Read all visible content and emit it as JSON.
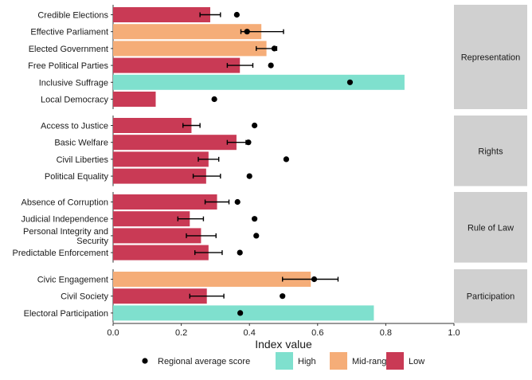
{
  "chart_data": {
    "type": "bar",
    "orientation": "horizontal",
    "xlabel": "Index value",
    "xlim": [
      0,
      1
    ],
    "xticks": [
      0.0,
      0.2,
      0.4,
      0.6,
      0.8,
      1.0
    ],
    "xtick_labels": [
      "0.0",
      "0.2",
      "0.4",
      "0.6",
      "0.8",
      "1.0"
    ],
    "grid": false,
    "legend_position": "bottom",
    "legend": [
      {
        "label": "Regional average score",
        "kind": "point",
        "color": "#000000"
      },
      {
        "label": "High",
        "kind": "fill",
        "color": "#7fe0ce"
      },
      {
        "label": "Mid-range",
        "kind": "fill",
        "color": "#f5ad78"
      },
      {
        "label": "Low",
        "kind": "fill",
        "color": "#c93a55"
      }
    ],
    "colors": {
      "High": "#7fe0ce",
      "Mid-range": "#f5ad78",
      "Low": "#c93a55",
      "facet_strip": "#d0d0d0"
    },
    "facets": [
      {
        "name": "Representation",
        "items": [
          {
            "label": [
              "Credible Elections"
            ],
            "value": 0.285,
            "level": "Low",
            "err": [
              0.255,
              0.315
            ],
            "regional": 0.363
          },
          {
            "label": [
              "Effective Parliament"
            ],
            "value": 0.435,
            "level": "Mid-range",
            "err": [
              0.375,
              0.5
            ],
            "regional": 0.393
          },
          {
            "label": [
              "Elected Government"
            ],
            "value": 0.45,
            "level": "Mid-range",
            "err": [
              0.42,
              0.48
            ],
            "regional": 0.473
          },
          {
            "label": [
              "Free Political Parties"
            ],
            "value": 0.372,
            "level": "Low",
            "err": [
              0.335,
              0.41
            ],
            "regional": 0.463
          },
          {
            "label": [
              "Inclusive Suffrage"
            ],
            "value": 0.855,
            "level": "High",
            "err": null,
            "regional": 0.695
          },
          {
            "label": [
              "Local Democracy"
            ],
            "value": 0.125,
            "level": "Low",
            "err": null,
            "regional": 0.297
          }
        ]
      },
      {
        "name": "Rights",
        "items": [
          {
            "label": [
              "Access to Justice"
            ],
            "value": 0.23,
            "level": "Low",
            "err": [
              0.205,
              0.255
            ],
            "regional": 0.415
          },
          {
            "label": [
              "Basic Welfare"
            ],
            "value": 0.362,
            "level": "Low",
            "err": [
              0.335,
              0.39
            ],
            "regional": 0.397
          },
          {
            "label": [
              "Civil Liberties"
            ],
            "value": 0.28,
            "level": "Low",
            "err": [
              0.25,
              0.31
            ],
            "regional": 0.508
          },
          {
            "label": [
              "Political Equality"
            ],
            "value": 0.273,
            "level": "Low",
            "err": [
              0.235,
              0.315
            ],
            "regional": 0.4
          }
        ]
      },
      {
        "name": "Rule of Law",
        "items": [
          {
            "label": [
              "Absence of Corruption"
            ],
            "value": 0.305,
            "level": "Low",
            "err": [
              0.27,
              0.34
            ],
            "regional": 0.365
          },
          {
            "label": [
              "Judicial Independence"
            ],
            "value": 0.225,
            "level": "Low",
            "err": [
              0.19,
              0.265
            ],
            "regional": 0.415
          },
          {
            "label": [
              "Personal Integrity and",
              "Security"
            ],
            "value": 0.258,
            "level": "Low",
            "err": [
              0.215,
              0.302
            ],
            "regional": 0.42
          },
          {
            "label": [
              "Predictable Enforcement"
            ],
            "value": 0.28,
            "level": "Low",
            "err": [
              0.24,
              0.32
            ],
            "regional": 0.372
          }
        ]
      },
      {
        "name": "Participation",
        "items": [
          {
            "label": [
              "Civic Engagement"
            ],
            "value": 0.58,
            "level": "Mid-range",
            "err": [
              0.497,
              0.66
            ],
            "regional": 0.59
          },
          {
            "label": [
              "Civil Society"
            ],
            "value": 0.275,
            "level": "Low",
            "err": [
              0.225,
              0.325
            ],
            "regional": 0.497
          },
          {
            "label": [
              "Electoral Participation"
            ],
            "value": 0.765,
            "level": "High",
            "err": null,
            "regional": 0.373
          }
        ]
      }
    ]
  }
}
